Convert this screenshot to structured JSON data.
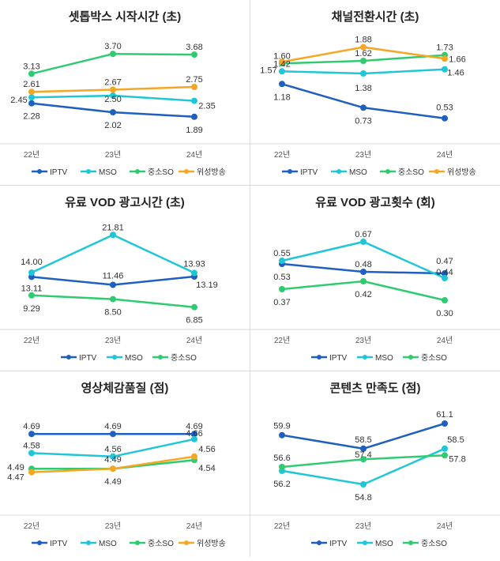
{
  "colors": {
    "IPTV": "#1f5fbf",
    "MSO": "#1fc6d6",
    "중소SO": "#2ecb71",
    "위성방송": "#f5a623"
  },
  "chart_data": [
    {
      "type": "line",
      "title": "셋톱박스 시작시간 (초)",
      "categories": [
        "22년",
        "23년",
        "24년"
      ],
      "ylim": [
        1.5,
        4.0
      ],
      "series": [
        {
          "name": "IPTV",
          "values": [
            2.28,
            2.02,
            1.89
          ]
        },
        {
          "name": "MSO",
          "values": [
            2.45,
            2.5,
            2.35
          ]
        },
        {
          "name": "중소SO",
          "values": [
            3.13,
            3.7,
            3.68
          ]
        },
        {
          "name": "위성방송",
          "values": [
            2.61,
            2.67,
            2.75
          ]
        }
      ],
      "labels": {
        "IPTV": [
          "2.28",
          "2.02",
          "1.89"
        ],
        "MSO": [
          "2.45",
          "2.50",
          "2.35"
        ],
        "중소SO": [
          "3.13",
          "3.70",
          "3.68"
        ],
        "위성방송": [
          "2.61",
          "2.67",
          "2.75"
        ]
      },
      "legend": [
        "IPTV",
        "MSO",
        "중소SO",
        "위성방송"
      ]
    },
    {
      "type": "line",
      "title": "채널전환시간 (초)",
      "categories": [
        "22년",
        "23년",
        "24년"
      ],
      "ylim": [
        0.3,
        1.95
      ],
      "series": [
        {
          "name": "IPTV",
          "values": [
            1.18,
            0.73,
            0.53
          ]
        },
        {
          "name": "MSO",
          "values": [
            1.42,
            1.38,
            1.46
          ]
        },
        {
          "name": "중소SO",
          "values": [
            1.57,
            1.62,
            1.73
          ]
        },
        {
          "name": "위성방송",
          "values": [
            1.6,
            1.88,
            1.66
          ]
        }
      ],
      "labels": {
        "IPTV": [
          "1.18",
          "0.73",
          "0.53"
        ],
        "MSO": [
          "1.42",
          "1.38",
          "1.46"
        ],
        "중소SO": [
          "1.57",
          "1.62",
          "1.73"
        ],
        "위성방송": [
          "1.60",
          "1.88",
          "1.66"
        ]
      },
      "legend": [
        "IPTV",
        "MSO",
        "중소SO",
        "위성방송"
      ]
    },
    {
      "type": "line",
      "title": "유료 VOD 광고시간 (초)",
      "categories": [
        "22년",
        "23년",
        "24년"
      ],
      "ylim": [
        5,
        23
      ],
      "series": [
        {
          "name": "IPTV",
          "values": [
            13.11,
            11.46,
            13.19
          ]
        },
        {
          "name": "MSO",
          "values": [
            14.0,
            21.81,
            13.93
          ]
        },
        {
          "name": "중소SO",
          "values": [
            9.29,
            8.5,
            6.85
          ]
        }
      ],
      "labels": {
        "IPTV": [
          "13.11",
          "11.46",
          "13.19"
        ],
        "MSO": [
          "14.00",
          "21.81",
          "13.93"
        ],
        "중소SO": [
          "9.29",
          "8.50",
          "6.85"
        ]
      },
      "legend": [
        "IPTV",
        "MSO",
        "중소SO"
      ]
    },
    {
      "type": "line",
      "title": "유료 VOD 광고횟수 (회)",
      "categories": [
        "22년",
        "23년",
        "24년"
      ],
      "ylim": [
        0.2,
        0.75
      ],
      "series": [
        {
          "name": "IPTV",
          "values": [
            0.53,
            0.48,
            0.47
          ]
        },
        {
          "name": "MSO",
          "values": [
            0.55,
            0.67,
            0.44
          ]
        },
        {
          "name": "중소SO",
          "values": [
            0.37,
            0.42,
            0.3
          ]
        }
      ],
      "labels": {
        "IPTV": [
          "0.53",
          "0.48",
          "0.47"
        ],
        "MSO": [
          "0.55",
          "0.67",
          "0.44"
        ],
        "중소SO": [
          "0.37",
          "0.42",
          "0.30"
        ]
      },
      "legend": [
        "IPTV",
        "MSO",
        "중소SO"
      ]
    },
    {
      "type": "line",
      "title": "영상체감품질 (점)",
      "categories": [
        "22년",
        "23년",
        "24년"
      ],
      "ylim": [
        4.3,
        4.8
      ],
      "series": [
        {
          "name": "IPTV",
          "values": [
            4.69,
            4.69,
            4.69
          ]
        },
        {
          "name": "MSO",
          "values": [
            4.58,
            4.56,
            4.66
          ]
        },
        {
          "name": "중소SO",
          "values": [
            4.49,
            4.49,
            4.54
          ]
        },
        {
          "name": "위성방송",
          "values": [
            4.47,
            4.49,
            4.56
          ]
        }
      ],
      "labels": {
        "IPTV": [
          "4.69",
          "4.69",
          "4.69"
        ],
        "MSO": [
          "4.58",
          "4.56",
          "4.66"
        ],
        "중소SO": [
          "4.49",
          "4.49",
          "4.54"
        ],
        "위성방송": [
          "4.47",
          "4.49",
          "4.56"
        ]
      },
      "legend": [
        "IPTV",
        "MSO",
        "중소SO",
        "위성방송"
      ]
    },
    {
      "type": "line",
      "title": "콘텐츠 만족도 (점)",
      "categories": [
        "22년",
        "23년",
        "24년"
      ],
      "ylim": [
        53,
        62
      ],
      "series": [
        {
          "name": "IPTV",
          "values": [
            59.9,
            58.5,
            61.1
          ]
        },
        {
          "name": "MSO",
          "values": [
            56.2,
            54.8,
            58.5
          ]
        },
        {
          "name": "중소SO",
          "values": [
            56.6,
            57.4,
            57.8
          ]
        }
      ],
      "labels": {
        "IPTV": [
          "59.9",
          "58.5",
          "61.1"
        ],
        "MSO": [
          "56.2",
          "54.8",
          "58.5"
        ],
        "중소SO": [
          "56.6",
          "57.4",
          "57.8"
        ]
      },
      "legend": [
        "IPTV",
        "MSO",
        "중소SO"
      ]
    }
  ]
}
